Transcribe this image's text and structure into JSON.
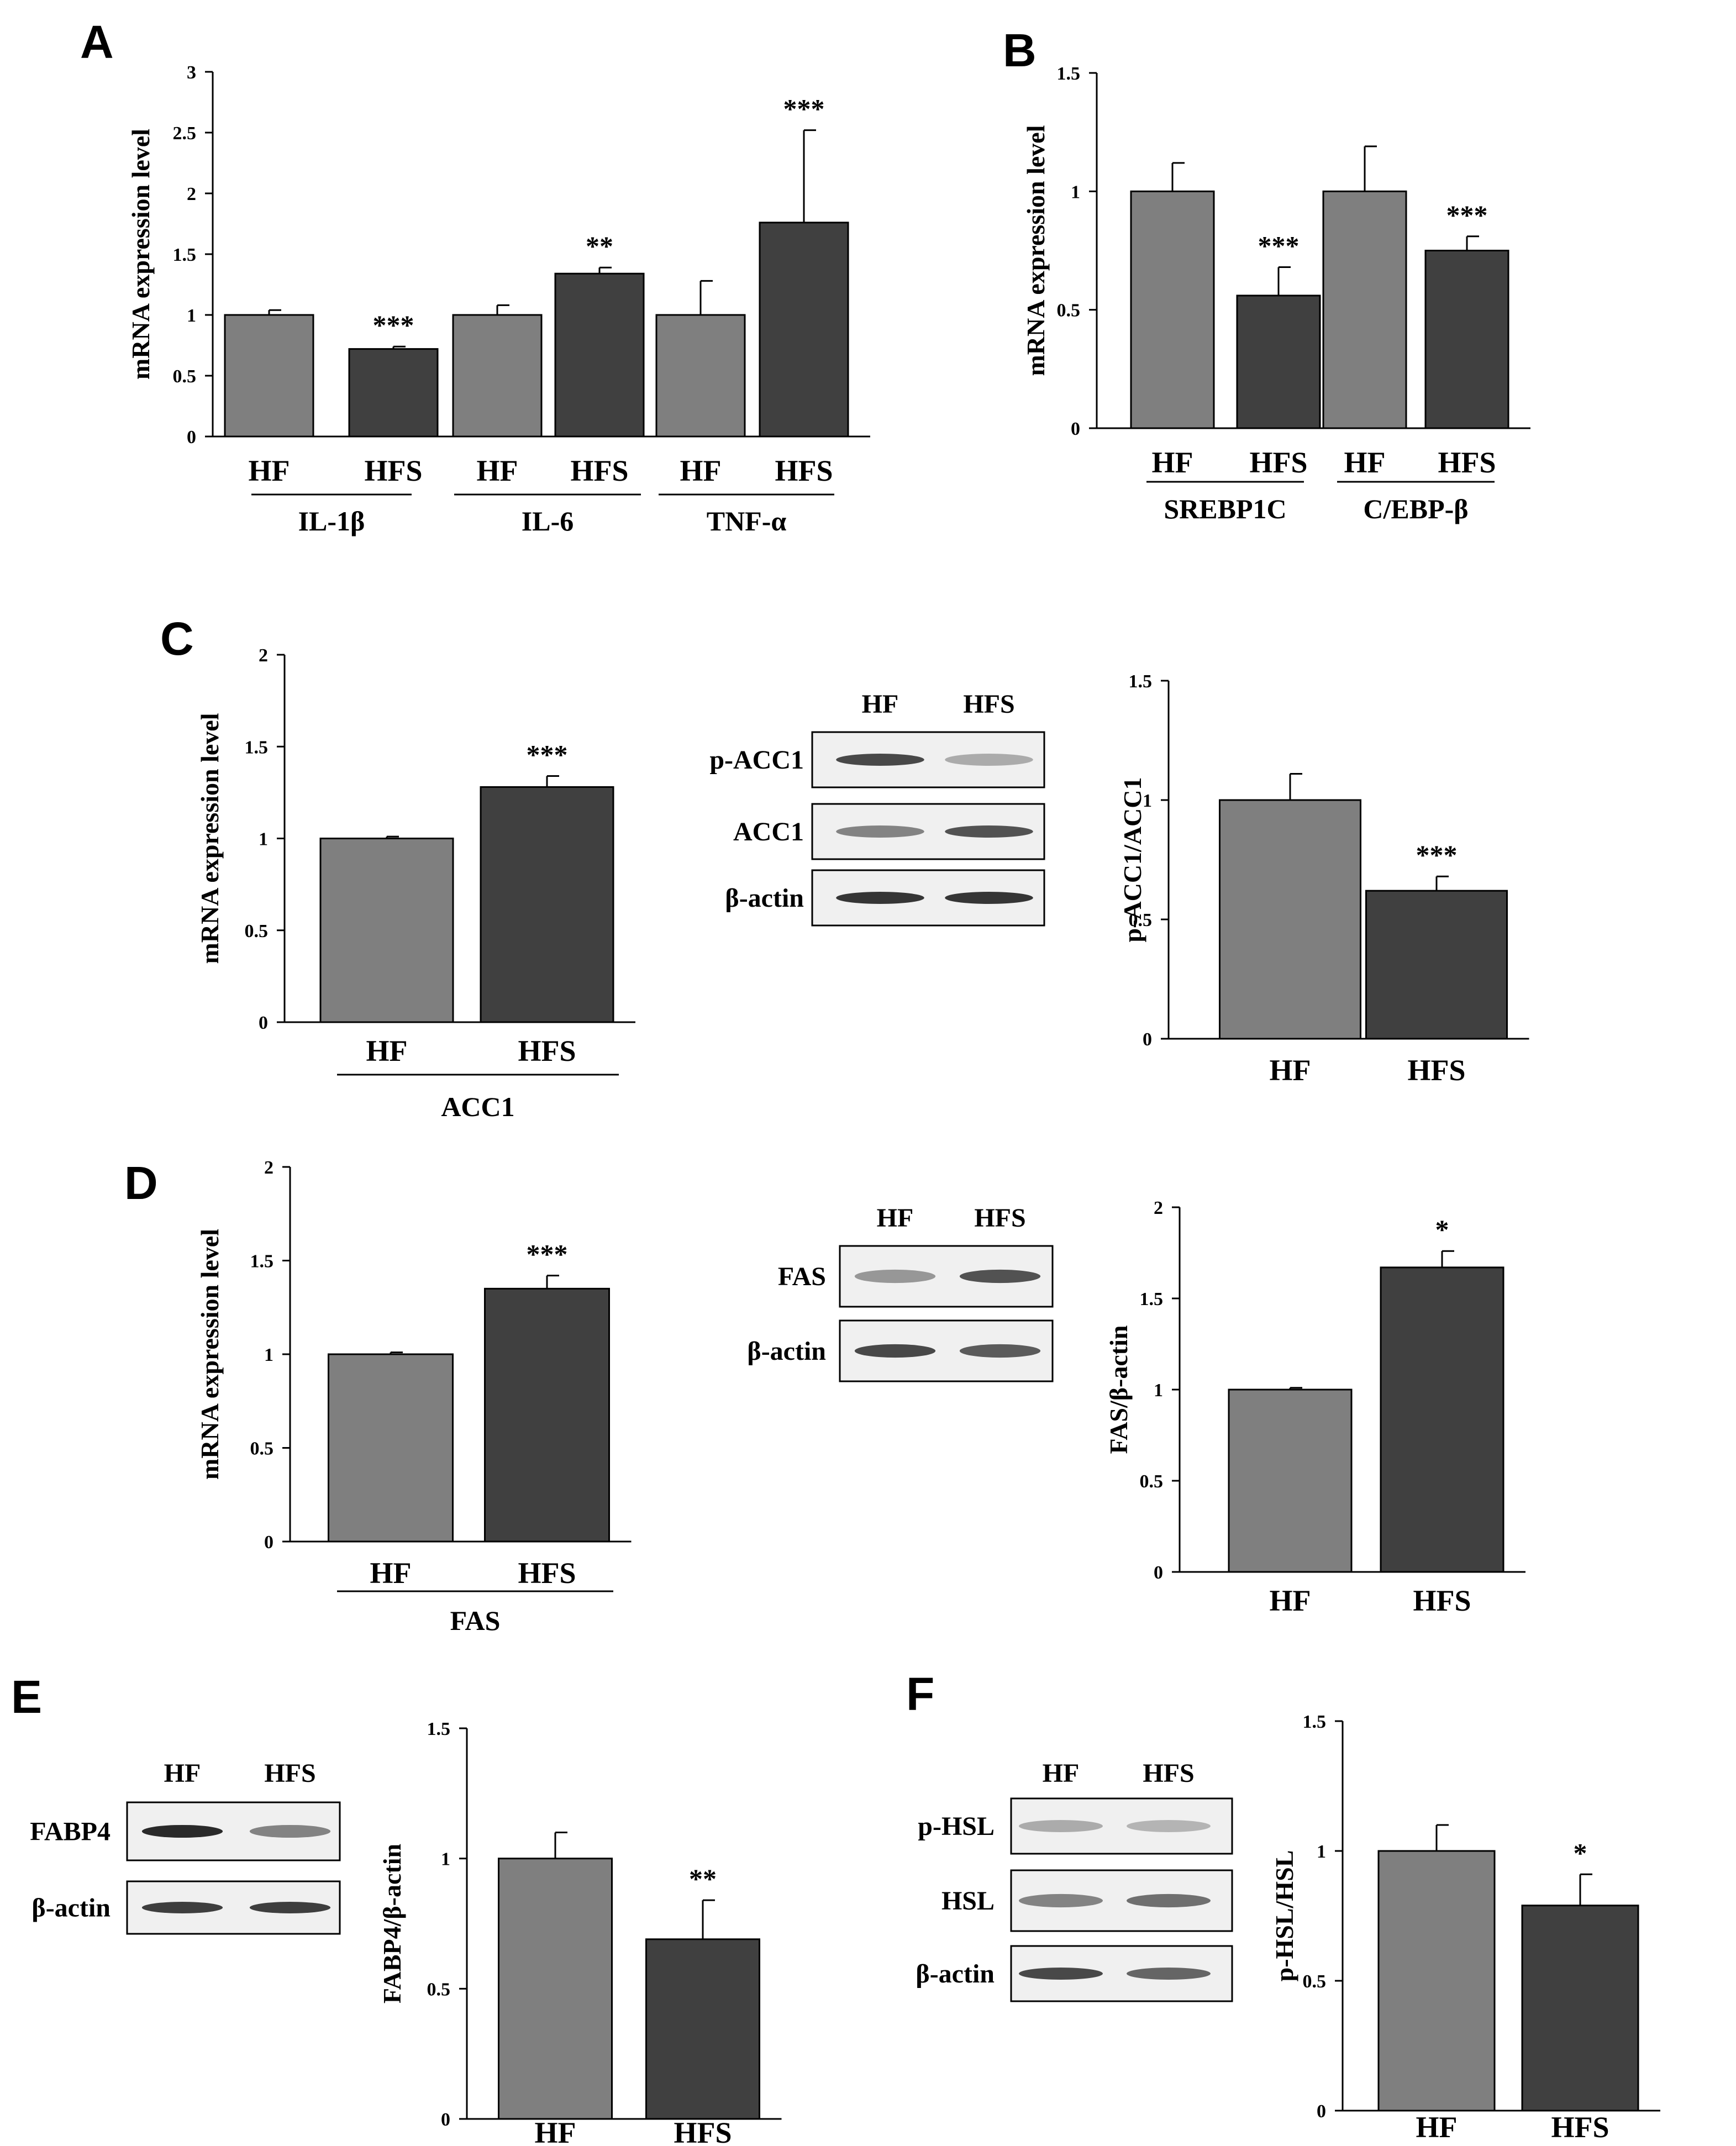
{
  "colors": {
    "hf": "#7f7f7f",
    "hfs": "#404040",
    "axis": "#000000",
    "band": "#2a2a2a",
    "membrane": "#f0f0f0"
  },
  "panels": {
    "A": "A",
    "B": "B",
    "C": "C",
    "D": "D",
    "E": "E",
    "F": "F"
  },
  "chart_data": [
    {
      "id": "A",
      "type": "bar",
      "ylabel": "mRNA expression level",
      "ylim": [
        0,
        3
      ],
      "yticks": [
        "0",
        "0.5",
        "1",
        "1.5",
        "2",
        "2.5",
        "3"
      ],
      "bars": [
        {
          "label": "HF",
          "value": 1.0,
          "err": 0.04,
          "sig": "",
          "color": "hf"
        },
        {
          "label": "HFS",
          "value": 0.72,
          "err": 0.02,
          "sig": "***",
          "color": "hfs"
        },
        {
          "label": "HF",
          "value": 1.0,
          "err": 0.08,
          "sig": "",
          "color": "hf"
        },
        {
          "label": "HFS",
          "value": 1.34,
          "err": 0.05,
          "sig": "**",
          "color": "hfs"
        },
        {
          "label": "HF",
          "value": 1.0,
          "err": 0.28,
          "sig": "",
          "color": "hf"
        },
        {
          "label": "HFS",
          "value": 1.76,
          "err": 0.76,
          "sig": "***",
          "color": "hfs"
        }
      ],
      "groups": [
        "IL-1β",
        "IL-6",
        "TNF-α"
      ]
    },
    {
      "id": "B",
      "type": "bar",
      "ylabel": "mRNA expression level",
      "ylim": [
        0,
        1.5
      ],
      "yticks": [
        "0",
        "0.5",
        "1",
        "1.5"
      ],
      "bars": [
        {
          "label": "HF",
          "value": 1.0,
          "err": 0.12,
          "sig": "",
          "color": "hf"
        },
        {
          "label": "HFS",
          "value": 0.56,
          "err": 0.12,
          "sig": "***",
          "color": "hfs"
        },
        {
          "label": "HF",
          "value": 1.0,
          "err": 0.19,
          "sig": "",
          "color": "hf"
        },
        {
          "label": "HFS",
          "value": 0.75,
          "err": 0.06,
          "sig": "***",
          "color": "hfs"
        }
      ],
      "groups": [
        "SREBP1C",
        "C/EBP-β"
      ]
    },
    {
      "id": "C1",
      "type": "bar",
      "ylabel": "mRNA expression level",
      "ylim": [
        0,
        2
      ],
      "yticks": [
        "0",
        "0.5",
        "1",
        "1.5",
        "2"
      ],
      "bars": [
        {
          "label": "HF",
          "value": 1.0,
          "err": 0.01,
          "sig": "",
          "color": "hf"
        },
        {
          "label": "HFS",
          "value": 1.28,
          "err": 0.06,
          "sig": "***",
          "color": "hfs"
        }
      ],
      "groups": [
        "ACC1"
      ]
    },
    {
      "id": "C2",
      "type": "bar",
      "ylabel": "p-ACC1/ACC1",
      "ylim": [
        0,
        1.5
      ],
      "yticks": [
        "0",
        "0.5",
        "1",
        "1.5"
      ],
      "bars": [
        {
          "label": "HF",
          "value": 1.0,
          "err": 0.11,
          "sig": "",
          "color": "hf"
        },
        {
          "label": "HFS",
          "value": 0.62,
          "err": 0.06,
          "sig": "***",
          "color": "hfs"
        }
      ],
      "groups": []
    },
    {
      "id": "D1",
      "type": "bar",
      "ylabel": "mRNA expression level",
      "ylim": [
        0,
        2
      ],
      "yticks": [
        "0",
        "0.5",
        "1",
        "1.5",
        "2"
      ],
      "bars": [
        {
          "label": "HF",
          "value": 1.0,
          "err": 0.01,
          "sig": "",
          "color": "hf"
        },
        {
          "label": "HFS",
          "value": 1.35,
          "err": 0.07,
          "sig": "***",
          "color": "hfs"
        }
      ],
      "groups": [
        "FAS"
      ]
    },
    {
      "id": "D2",
      "type": "bar",
      "ylabel": "FAS/β-actin",
      "ylim": [
        0,
        2
      ],
      "yticks": [
        "0",
        "0.5",
        "1",
        "1.5",
        "2"
      ],
      "bars": [
        {
          "label": "HF",
          "value": 1.0,
          "err": 0.01,
          "sig": "",
          "color": "hf"
        },
        {
          "label": "HFS",
          "value": 1.67,
          "err": 0.09,
          "sig": "*",
          "color": "hfs"
        }
      ],
      "groups": []
    },
    {
      "id": "E",
      "type": "bar",
      "ylabel": "FABP4/β-actin",
      "ylim": [
        0,
        1.5
      ],
      "yticks": [
        "0",
        "0.5",
        "1",
        "1.5"
      ],
      "bars": [
        {
          "label": "HF",
          "value": 1.0,
          "err": 0.1,
          "sig": "",
          "color": "hf"
        },
        {
          "label": "HFS",
          "value": 0.69,
          "err": 0.15,
          "sig": "**",
          "color": "hfs"
        }
      ],
      "groups": []
    },
    {
      "id": "F",
      "type": "bar",
      "ylabel": "p-HSL/HSL",
      "ylim": [
        0,
        1.5
      ],
      "yticks": [
        "0",
        "0.5",
        "1",
        "1.5"
      ],
      "bars": [
        {
          "label": "HF",
          "value": 1.0,
          "err": 0.1,
          "sig": "",
          "color": "hf"
        },
        {
          "label": "HFS",
          "value": 0.79,
          "err": 0.12,
          "sig": "*",
          "color": "hfs"
        }
      ],
      "groups": []
    }
  ],
  "blots": [
    {
      "id": "C",
      "lanes": [
        "HF",
        "HFS"
      ],
      "rows": [
        {
          "label": "p-ACC1",
          "bands": [
            0.85,
            0.35
          ]
        },
        {
          "label": "ACC1",
          "bands": [
            0.55,
            0.8
          ]
        },
        {
          "label": "β-actin",
          "bands": [
            0.95,
            0.95
          ]
        }
      ]
    },
    {
      "id": "D",
      "lanes": [
        "HF",
        "HFS"
      ],
      "rows": [
        {
          "label": "FAS",
          "bands": [
            0.45,
            0.8
          ]
        },
        {
          "label": "β-actin",
          "bands": [
            0.85,
            0.75
          ]
        }
      ]
    },
    {
      "id": "E",
      "lanes": [
        "HF",
        "HFS"
      ],
      "rows": [
        {
          "label": "FABP4",
          "bands": [
            1.0,
            0.55
          ]
        },
        {
          "label": "β-actin",
          "bands": [
            0.9,
            0.9
          ]
        }
      ]
    },
    {
      "id": "F",
      "lanes": [
        "HF",
        "HFS"
      ],
      "rows": [
        {
          "label": "p-HSL",
          "bands": [
            0.35,
            0.3
          ]
        },
        {
          "label": "HSL",
          "bands": [
            0.55,
            0.65
          ]
        },
        {
          "label": "β-actin",
          "bands": [
            0.85,
            0.7
          ]
        }
      ]
    }
  ]
}
